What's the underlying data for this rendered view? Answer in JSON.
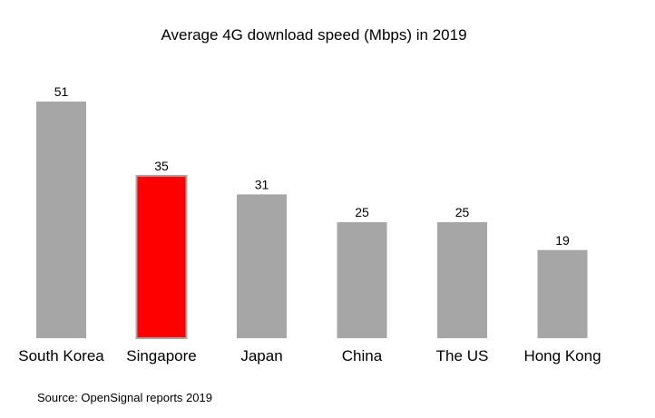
{
  "chart_data": {
    "type": "bar",
    "title": "Average 4G download speed (Mbps) in 2019",
    "categories": [
      "South Korea",
      "Singapore",
      "Japan",
      "China",
      "The US",
      "Hong Kong"
    ],
    "values": [
      51,
      35,
      31,
      25,
      25,
      19
    ],
    "data_labels": [
      "51",
      "35",
      "31",
      "25",
      "25",
      "19"
    ],
    "bar_colors": [
      "#a6a6a6",
      "#ff0000",
      "#a6a6a6",
      "#a6a6a6",
      "#a6a6a6",
      "#a6a6a6"
    ],
    "highlight_outline": "#a6a6a6",
    "xlabel": "",
    "ylabel": "",
    "ylim": [
      0,
      51
    ],
    "grid": false,
    "y_axis_visible": false,
    "source": "Source: OpenSignal reports 2019"
  }
}
